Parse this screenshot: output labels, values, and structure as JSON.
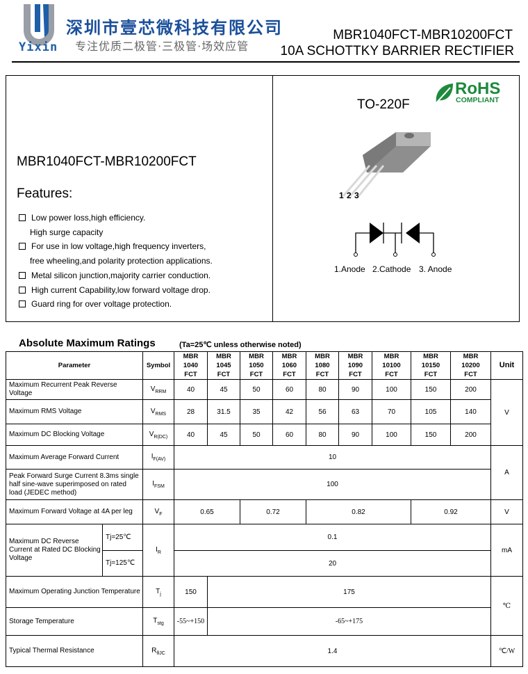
{
  "header": {
    "logo_text": "Yixin",
    "company_cn": "深圳市壹芯微科技有限公司",
    "slogan_cn": "专注优质二极管·三极管·场效应管",
    "part_range": "MBR1040FCT-MBR10200FCT",
    "description": "10A SCHOTTKY BARRIER RECTIFIER"
  },
  "overview": {
    "part_title": "MBR1040FCT-MBR10200FCT",
    "features_heading": "Features:",
    "features": [
      {
        "line1": "Low power loss,high efficiency.",
        "line2": "High surge capacity"
      },
      {
        "line1": "For use in low voltage,high frequency inverters,",
        "line2": "free wheeling,and polarity protection applications."
      },
      {
        "line1": "Metal silicon junction,majority carrier conduction.",
        "line2": ""
      },
      {
        "line1": "High current Capability,low forward voltage drop.",
        "line2": ""
      },
      {
        "line1": "Guard ring for over voltage protection.",
        "line2": ""
      }
    ],
    "package": "TO-220F",
    "rohs": {
      "title": "RoHS",
      "subtitle": "COMPLIANT",
      "color": "#1e8a3c"
    },
    "pin_numbers": "1 2 3",
    "pins": [
      "1.Anode",
      "2.Cathode",
      "3. Anode"
    ]
  },
  "ratings": {
    "title": "Absolute Maximum Ratings",
    "note": "(Ta=25℃ unless otherwise noted)",
    "headers": {
      "parameter": "Parameter",
      "symbol": "Symbol",
      "unit": "Unit",
      "models": [
        [
          "MBR",
          "1040",
          "FCT"
        ],
        [
          "MBR",
          "1045",
          "FCT"
        ],
        [
          "MBR",
          "1050",
          "FCT"
        ],
        [
          "MBR",
          "1060",
          "FCT"
        ],
        [
          "MBR",
          "1080",
          "FCT"
        ],
        [
          "MBR",
          "1090",
          "FCT"
        ],
        [
          "MBR",
          "10100",
          "FCT"
        ],
        [
          "MBR",
          "10150",
          "FCT"
        ],
        [
          "MBR",
          "10200",
          "FCT"
        ]
      ]
    },
    "vrrm": {
      "param": "Maximum Recurrent Peak Reverse Voltage",
      "sym": "V",
      "sub": "RRM",
      "values": [
        "40",
        "45",
        "50",
        "60",
        "80",
        "90",
        "100",
        "150",
        "200"
      ]
    },
    "vrms": {
      "param": "Maximum RMS Voltage",
      "sym": "V",
      "sub": "RMS",
      "values": [
        "28",
        "31.5",
        "35",
        "42",
        "56",
        "63",
        "70",
        "105",
        "140"
      ]
    },
    "vdc": {
      "param": "Maximum DC Blocking Voltage",
      "sym": "V",
      "sub": "R(DC)",
      "values": [
        "40",
        "45",
        "50",
        "60",
        "80",
        "90",
        "100",
        "150",
        "200"
      ]
    },
    "v_unit": "V",
    "ifav": {
      "param": "Maximum Average Forward Current",
      "sym": "I",
      "sub": "F(AV)",
      "value": "10"
    },
    "ifsm": {
      "param": "Peak Forward Surge Current 8.3ms single half sine-wave superimposed on rated load (JEDEC method)",
      "sym": "I",
      "sub": "FSM",
      "value": "100"
    },
    "a_unit": "A",
    "vf": {
      "param": "Maximum Forward Voltage at 4A per leg",
      "sym": "V",
      "sub": "F",
      "values": [
        "0.65",
        "0.72",
        "0.82",
        "0.92"
      ],
      "unit": "V"
    },
    "ir": {
      "param": "Maximum DC Reverse Current at Rated DC Blocking Voltage",
      "cond1": "Tj=25℃",
      "cond2": "Tj=125℃",
      "sym": "I",
      "sub": "R",
      "value1": "0.1",
      "value2": "20",
      "unit": "mA"
    },
    "tj": {
      "param": "Maximum Operating Junction Temperature",
      "sym": "T",
      "sub": "j",
      "values": [
        "150",
        "175"
      ]
    },
    "tstg": {
      "param": "Storage Temperature",
      "sym": "T",
      "sub": "stg",
      "values": [
        "-55~+150",
        "-65~+175"
      ]
    },
    "temp_unit": "℃",
    "rth": {
      "param": "Typical Thermal Resistance",
      "sym": "R",
      "sub": "θJC",
      "value": "1.4",
      "unit": "℃/W"
    }
  }
}
